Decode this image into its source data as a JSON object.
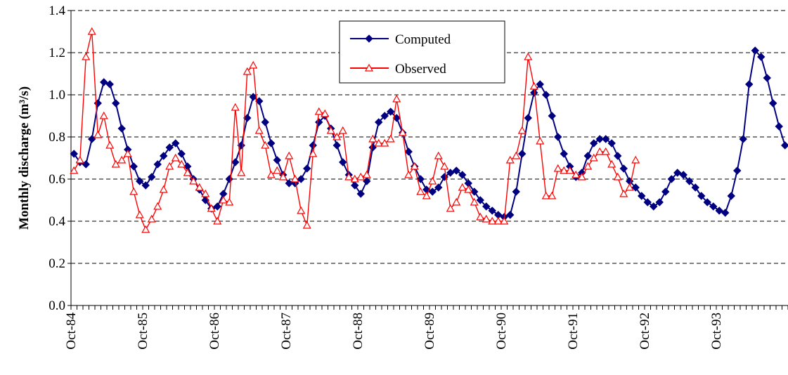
{
  "chart_data": {
    "type": "line",
    "y_label": "Monthly discharge (m³/s)",
    "categories": [
      "Oct-84",
      null,
      null,
      null,
      null,
      null,
      null,
      null,
      null,
      null,
      null,
      null,
      "Oct-85",
      null,
      null,
      null,
      null,
      null,
      null,
      null,
      null,
      null,
      null,
      null,
      "Oct-86",
      null,
      null,
      null,
      null,
      null,
      null,
      null,
      null,
      null,
      null,
      null,
      "Oct-87",
      null,
      null,
      null,
      null,
      null,
      null,
      null,
      null,
      null,
      null,
      null,
      "Oct-88",
      null,
      null,
      null,
      null,
      null,
      null,
      null,
      null,
      null,
      null,
      null,
      "Oct-89",
      null,
      null,
      null,
      null,
      null,
      null,
      null,
      null,
      null,
      null,
      null,
      "Oct-90",
      null,
      null,
      null,
      null,
      null,
      null,
      null,
      null,
      null,
      null,
      null,
      "Oct-91",
      null,
      null,
      null,
      null,
      null,
      null,
      null,
      null,
      null,
      null,
      null,
      "Oct-92",
      null,
      null,
      null,
      null,
      null,
      null,
      null,
      null,
      null,
      null,
      null,
      "Oct-93",
      null,
      null,
      null,
      null,
      null,
      null,
      null,
      null,
      null,
      null,
      null
    ],
    "series": [
      {
        "name": "Computed",
        "color": "#000080",
        "marker": "diamond",
        "values": [
          0.72,
          0.68,
          0.67,
          0.79,
          0.96,
          1.06,
          1.05,
          0.96,
          0.84,
          0.74,
          0.66,
          0.59,
          0.57,
          0.61,
          0.67,
          0.71,
          0.75,
          0.77,
          0.72,
          0.66,
          0.6,
          0.55,
          0.5,
          0.46,
          0.47,
          0.53,
          0.6,
          0.68,
          0.76,
          0.89,
          0.99,
          0.97,
          0.87,
          0.77,
          0.69,
          0.62,
          0.58,
          0.58,
          0.6,
          0.65,
          0.76,
          0.87,
          0.9,
          0.84,
          0.76,
          0.68,
          0.62,
          0.57,
          0.53,
          0.59,
          0.75,
          0.87,
          0.9,
          0.92,
          0.89,
          0.82,
          0.73,
          0.66,
          0.6,
          0.55,
          0.54,
          0.56,
          0.61,
          0.63,
          0.64,
          0.62,
          0.58,
          0.54,
          0.5,
          0.47,
          0.45,
          0.43,
          0.42,
          0.43,
          0.54,
          0.72,
          0.89,
          1.01,
          1.05,
          1.0,
          0.9,
          0.8,
          0.72,
          0.66,
          0.61,
          0.63,
          0.71,
          0.77,
          0.79,
          0.79,
          0.77,
          0.71,
          0.65,
          0.59,
          0.56,
          0.52,
          0.49,
          0.47,
          0.49,
          0.54,
          0.6,
          0.63,
          0.62,
          0.59,
          0.56,
          0.52,
          0.49,
          0.47,
          0.45,
          0.44,
          0.52,
          0.64,
          0.79,
          1.05,
          1.21,
          1.18,
          1.08,
          0.96,
          0.85,
          0.76
        ]
      },
      {
        "name": "Observed",
        "color": "#ff0000",
        "marker": "triangle",
        "values": [
          0.64,
          0.69,
          1.18,
          1.3,
          0.81,
          0.9,
          0.76,
          0.67,
          0.69,
          0.72,
          0.54,
          0.43,
          0.36,
          0.41,
          0.47,
          0.55,
          0.66,
          0.7,
          0.67,
          0.63,
          0.59,
          0.56,
          0.53,
          0.46,
          0.4,
          0.5,
          0.49,
          0.94,
          0.63,
          1.11,
          1.14,
          0.83,
          0.76,
          0.62,
          0.64,
          0.61,
          0.71,
          0.6,
          0.45,
          0.38,
          0.72,
          0.92,
          0.91,
          0.83,
          0.8,
          0.83,
          0.61,
          0.6,
          0.61,
          0.62,
          0.79,
          0.77,
          0.77,
          0.79,
          0.98,
          0.82,
          0.62,
          0.66,
          0.54,
          0.52,
          0.59,
          0.71,
          0.66,
          0.46,
          0.49,
          0.56,
          0.55,
          0.49,
          0.42,
          0.41,
          0.4,
          0.4,
          0.4,
          0.69,
          0.71,
          0.83,
          1.18,
          1.04,
          0.78,
          0.52,
          0.52,
          0.65,
          0.64,
          0.64,
          0.62,
          0.61,
          0.66,
          0.7,
          0.73,
          0.73,
          0.67,
          0.61,
          0.53,
          0.56,
          0.69,
          null,
          null,
          null,
          null,
          null,
          null,
          null,
          null,
          null,
          null,
          null,
          null,
          null,
          null,
          null,
          null,
          null,
          null,
          null,
          null,
          null,
          null,
          null,
          null,
          null
        ]
      }
    ],
    "ylim": [
      0,
      1.4
    ],
    "yticks": [
      {
        "value": 0,
        "label": "0.0"
      },
      0.2,
      0.4,
      0.6,
      0.8,
      {
        "value": 1,
        "label": "1.0"
      },
      1.2,
      1.4
    ],
    "grid": true,
    "legend": "top-center"
  }
}
